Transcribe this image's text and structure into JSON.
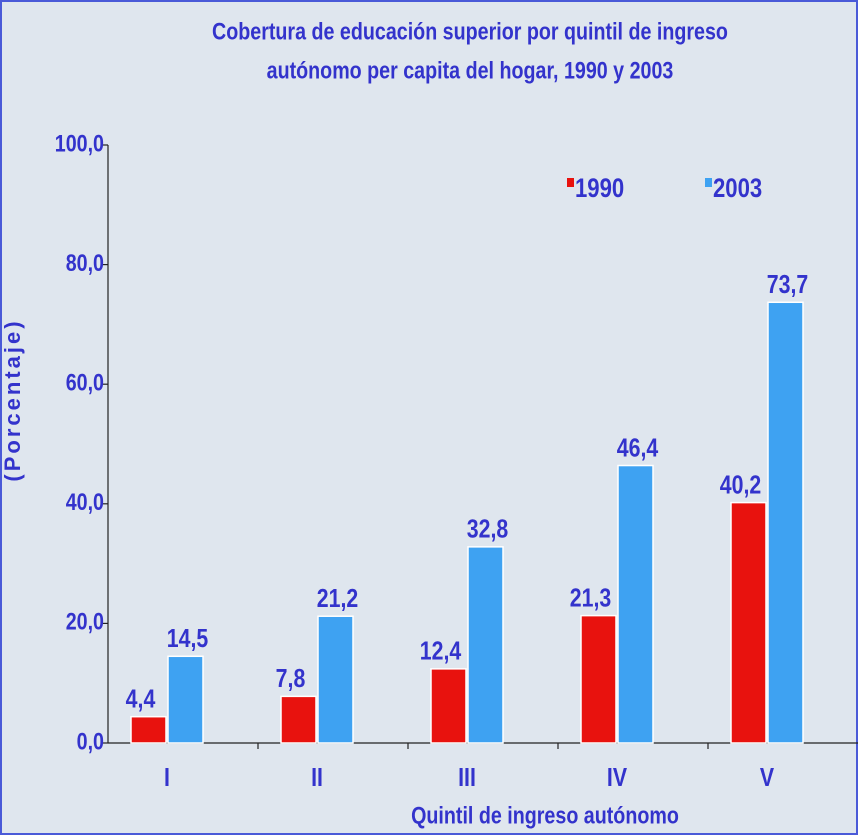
{
  "chart_data": {
    "type": "bar",
    "title": [
      "Cobertura de educación superior por quintil de ingreso",
      "autónomo per capita del hogar, 1990 y 2003"
    ],
    "y_label": "(Porcentaje)",
    "x_label": "Quintil de ingreso autónomo",
    "categories": [
      "I",
      "II",
      "III",
      "IV",
      "V"
    ],
    "series": [
      {
        "name": "1990",
        "color": "#e8120e",
        "values": [
          4.4,
          7.8,
          12.4,
          21.3,
          40.2
        ],
        "value_labels": [
          "4,4",
          "7,8",
          "12,4",
          "21,3",
          "40,2"
        ]
      },
      {
        "name": "2003",
        "color": "#3ea2f2",
        "values": [
          14.5,
          21.2,
          32.8,
          46.4,
          73.7
        ],
        "value_labels": [
          "14,5",
          "21,2",
          "32,8",
          "46,4",
          "73,7"
        ]
      }
    ],
    "ylim": [
      0,
      100
    ],
    "yticks": [
      {
        "value": 0,
        "label": "0,0"
      },
      {
        "value": 20,
        "label": "20,0"
      },
      {
        "value": 40,
        "label": "40,0"
      },
      {
        "value": 60,
        "label": "60,0"
      },
      {
        "value": 80,
        "label": "80,0"
      },
      {
        "value": 100,
        "label": "100,0"
      }
    ],
    "legend": "top-right"
  }
}
